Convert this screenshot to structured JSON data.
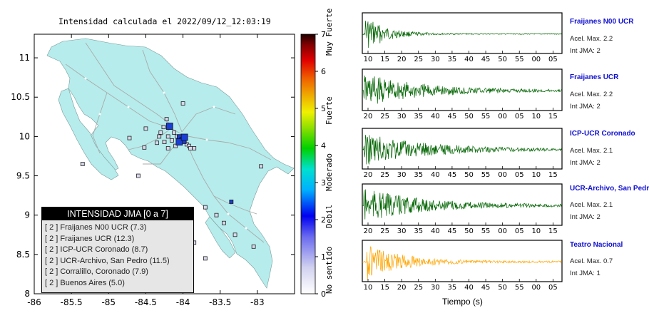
{
  "map": {
    "title": "Intensidad calculada el 2022/09/12_12:03:19",
    "lat_ticks": [
      "11",
      "10.5",
      "10",
      "9.5",
      "9",
      "8.5",
      "8"
    ],
    "lon_ticks": [
      "-86",
      "-85.5",
      "-85",
      "-84.5",
      "-84",
      "-83.5",
      "-83"
    ],
    "colorbar": {
      "ticks": [
        "7",
        "6",
        "5",
        "4",
        "3",
        "2",
        "1",
        "0"
      ],
      "labels": [
        "Muy Fuerte",
        "Fuerte",
        "Moderado",
        "Debil",
        "No sentido"
      ]
    },
    "legend": {
      "title": "INTENSIDAD JMA [0 a 7]",
      "rows": [
        "[ 2 ]  Fraijanes N00 UCR (7.3)",
        "[ 2 ]  Fraijanes UCR (12.3)",
        "[ 2 ]  ICP-UCR Coronado (8.7)",
        "[ 2 ]  UCR-Archivo, San Pedro (11.5)",
        "[ 2 ]  Corralillo, Coronado (7.9)",
        "[ 2 ]  Buenos Aires (5.0)"
      ]
    },
    "colors": {
      "land": "#b6ecec",
      "sea": "#ffffff",
      "station_blue": "#1a3ed8"
    }
  },
  "waveforms": {
    "xlabel": "Tiempo (s)",
    "stations": [
      {
        "name": "Fraijanes N00 UCR",
        "accel": "Acel. Max. 2.2",
        "jma": "Int JMA: 2",
        "color": "#006400",
        "ticks": [
          "10",
          "15",
          "20",
          "25",
          "30",
          "35",
          "40",
          "45",
          "50",
          "55",
          "00",
          "05"
        ],
        "show_ticks": true
      },
      {
        "name": "Fraijanes UCR",
        "accel": "Acel. Max. 2.2",
        "jma": "Int JMA: 2",
        "color": "#006400",
        "ticks": [
          "20",
          "25",
          "30",
          "35",
          "40",
          "45",
          "50",
          "55",
          "00",
          "05",
          "10",
          "15"
        ],
        "show_ticks": true
      },
      {
        "name": "ICP-UCR Coronado",
        "accel": "Acel. Max. 2.1",
        "jma": "Int JMA: 2",
        "color": "#006400",
        "ticks": [
          "20",
          "25",
          "30",
          "35",
          "40",
          "45",
          "50",
          "55",
          "00",
          "05",
          "10",
          "15"
        ],
        "show_ticks": true
      },
      {
        "name": "UCR-Archivo, San Pedro",
        "accel": "Acel. Max. 2.1",
        "jma": "Int JMA: 2",
        "color": "#006400",
        "ticks": [
          "20",
          "25",
          "30",
          "35",
          "40",
          "45",
          "50",
          "55",
          "00",
          "05",
          "10",
          "15"
        ],
        "show_ticks": true
      },
      {
        "name": "Teatro Nacional",
        "accel": "Acel. Max. 0.7",
        "jma": "Int JMA: 1",
        "color": "#ffa500",
        "ticks": [
          "10",
          "15",
          "20",
          "25",
          "30",
          "35",
          "40",
          "45",
          "50",
          "55",
          "00",
          "05"
        ],
        "show_ticks": true
      }
    ]
  },
  "chart_data": [
    {
      "type": "scatter",
      "title": "Intensidad calculada el 2022/09/12_12:03:19",
      "xlim": [
        -86,
        -82.5
      ],
      "ylim": [
        8,
        11.3
      ],
      "points": [
        {
          "lon": -84.18,
          "lat": 10.13,
          "value": 2
        },
        {
          "lon": -84.02,
          "lat": 9.97,
          "value": 2
        },
        {
          "lon": -84.0,
          "lat": 9.95,
          "value": 2
        },
        {
          "lon": -84.05,
          "lat": 9.93,
          "value": 2
        },
        {
          "lon": -83.98,
          "lat": 9.99,
          "value": 2
        },
        {
          "lon": -83.35,
          "lat": 9.17,
          "value": 2
        }
      ]
    }
  ]
}
